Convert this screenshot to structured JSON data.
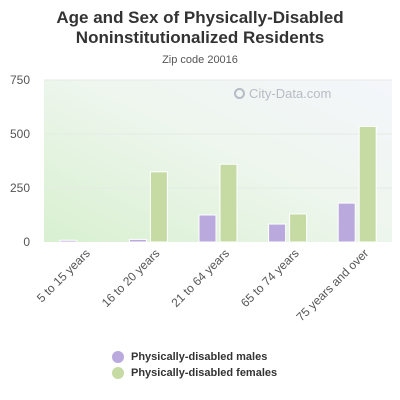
{
  "chart_data": {
    "type": "bar",
    "title": "Age and Sex of Physically-Disabled Noninstitutionalized Residents",
    "subtitle": "Zip code 20016",
    "categories": [
      "5 to 15 years",
      "16 to 20 years",
      "21 to 64 years",
      "65 to 74 years",
      "75 years and over"
    ],
    "series": [
      {
        "name": "Physically-disabled males",
        "color": "#b9a9dc",
        "values": [
          8,
          12,
          125,
          83,
          180
        ]
      },
      {
        "name": "Physically-disabled females",
        "color": "#c6dba4",
        "values": [
          0,
          325,
          360,
          130,
          535
        ]
      }
    ],
    "yticks": [
      0,
      250,
      500,
      750
    ],
    "ylim": [
      0,
      750
    ],
    "grid": true,
    "legend_position": "bottom"
  },
  "watermark": "City-Data.com"
}
